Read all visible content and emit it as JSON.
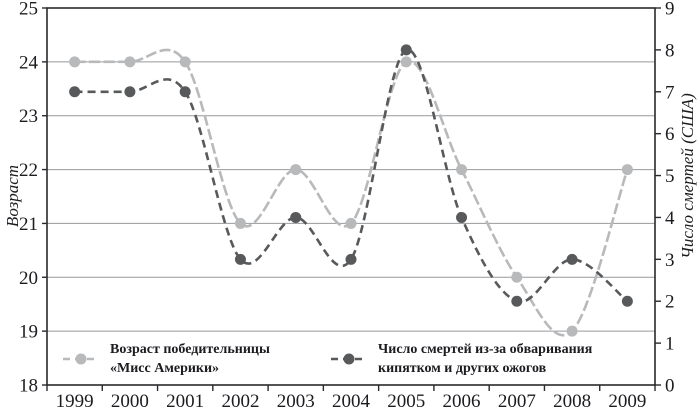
{
  "chart_data": {
    "type": "line",
    "title": "",
    "line_style": "smoothed dashed curves with circle markers",
    "grid": "horizontal gridlines at integer left-axis values",
    "legend_position": "inside bottom",
    "x_categories": [
      "1999",
      "2000",
      "2001",
      "2002",
      "2003",
      "2004",
      "2005",
      "2006",
      "2007",
      "2008",
      "2009"
    ],
    "series": [
      {
        "name": "Возраст победительницы «Мисс Америки»",
        "legend_line1": "Возраст победительницы",
        "legend_line2": "«Мисс Америки»",
        "axis": "left",
        "values": [
          24,
          24,
          24,
          21,
          22,
          21,
          24,
          22,
          20,
          19,
          22
        ],
        "color": "#b7b9bb",
        "dash": "11 3.5"
      },
      {
        "name": "Число смертей из-за обваривания кипятком и других ожогов",
        "legend_line1": "Число смертей из-за обваривания",
        "legend_line2": "кипятком и других ожогов",
        "axis": "right",
        "values": [
          7,
          7,
          7,
          3,
          4,
          3,
          8,
          4,
          2,
          3,
          2
        ],
        "color": "#58595b",
        "dash": "8 5"
      }
    ],
    "left_axis": {
      "label": "Возраст",
      "min": 18,
      "max": 25,
      "tick_labels": [
        "18",
        "19",
        "20",
        "21",
        "22",
        "23",
        "24",
        "25"
      ]
    },
    "right_axis": {
      "label": "Число смертей (США)",
      "min": 0,
      "max": 9,
      "tick_labels": [
        "0",
        "1",
        "2",
        "3",
        "4",
        "5",
        "6",
        "7",
        "8",
        "9"
      ]
    }
  },
  "colors": {
    "background": "#ffffff",
    "axis": "#2a292d",
    "gridline": "#97999c",
    "text": "#1c1b1f"
  }
}
